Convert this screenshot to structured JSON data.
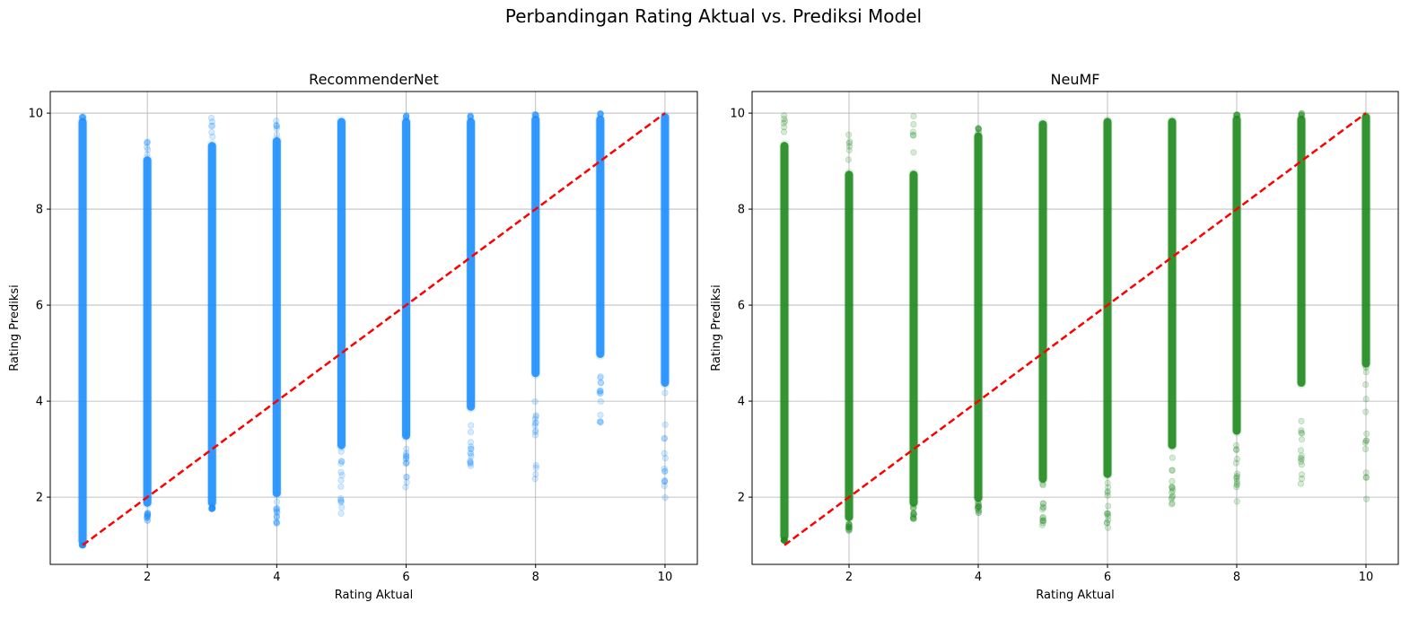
{
  "figure": {
    "suptitle": "Perbandingan Rating Aktual vs. Prediksi Model"
  },
  "chart_data": [
    {
      "type": "scatter",
      "title": "RecommenderNet",
      "xlabel": "Rating Aktual",
      "ylabel": "Rating Prediksi",
      "xlim": [
        0.5,
        10.5
      ],
      "ylim": [
        0.6,
        10.45
      ],
      "xticks": [
        2,
        4,
        6,
        8,
        10
      ],
      "yticks": [
        2,
        4,
        6,
        8,
        10
      ],
      "grid": true,
      "point_color": "#1e90ff",
      "reference_line": {
        "from": [
          1,
          1
        ],
        "to": [
          10,
          10
        ],
        "color": "#ff0000",
        "style": "dashed"
      },
      "series": [
        {
          "x_values": [
            1,
            2,
            3,
            4,
            5,
            6,
            7,
            8,
            9,
            10
          ],
          "dense_range": [
            [
              1.0,
              9.9
            ],
            [
              1.8,
              9.1
            ],
            [
              1.8,
              9.4
            ],
            [
              2.0,
              9.5
            ],
            [
              3.0,
              9.9
            ],
            [
              3.2,
              9.9
            ],
            [
              3.8,
              9.9
            ],
            [
              4.5,
              9.95
            ],
            [
              4.9,
              9.95
            ],
            [
              4.3,
              10.0
            ]
          ],
          "sparse_outliers": [
            [
              1.0,
              9.95
            ],
            [
              1.5,
              9.45
            ],
            [
              1.75,
              9.9
            ],
            [
              1.45,
              9.9
            ],
            [
              1.35,
              9.9
            ],
            [
              2.2,
              9.95
            ],
            [
              2.6,
              9.95
            ],
            [
              2.25,
              9.98
            ],
            [
              3.5,
              10.0
            ],
            [
              1.9,
              10.0
            ]
          ]
        }
      ]
    },
    {
      "type": "scatter",
      "title": "NeuMF",
      "xlabel": "Rating Aktual",
      "ylabel": "Rating Prediksi",
      "xlim": [
        0.5,
        10.5
      ],
      "ylim": [
        0.6,
        10.45
      ],
      "xticks": [
        2,
        4,
        6,
        8,
        10
      ],
      "yticks": [
        2,
        4,
        6,
        8,
        10
      ],
      "grid": true,
      "point_color": "#228b22",
      "reference_line": {
        "from": [
          1,
          1
        ],
        "to": [
          10,
          10
        ],
        "color": "#ff0000",
        "style": "dashed"
      },
      "series": [
        {
          "x_values": [
            1,
            2,
            3,
            4,
            5,
            6,
            7,
            8,
            9,
            10
          ],
          "dense_range": [
            [
              1.1,
              9.4
            ],
            [
              1.5,
              8.8
            ],
            [
              1.8,
              8.8
            ],
            [
              1.9,
              9.6
            ],
            [
              2.3,
              9.85
            ],
            [
              2.4,
              9.9
            ],
            [
              3.0,
              9.9
            ],
            [
              3.3,
              9.95
            ],
            [
              4.3,
              9.95
            ],
            [
              4.7,
              10.0
            ]
          ],
          "sparse_outliers": [
            [
              1.1,
              10.0
            ],
            [
              1.3,
              9.6
            ],
            [
              1.55,
              9.95
            ],
            [
              1.65,
              9.7
            ],
            [
              1.4,
              9.85
            ],
            [
              1.35,
              9.9
            ],
            [
              1.8,
              9.9
            ],
            [
              1.8,
              9.98
            ],
            [
              2.2,
              10.0
            ],
            [
              1.3,
              10.0
            ]
          ]
        }
      ]
    }
  ]
}
